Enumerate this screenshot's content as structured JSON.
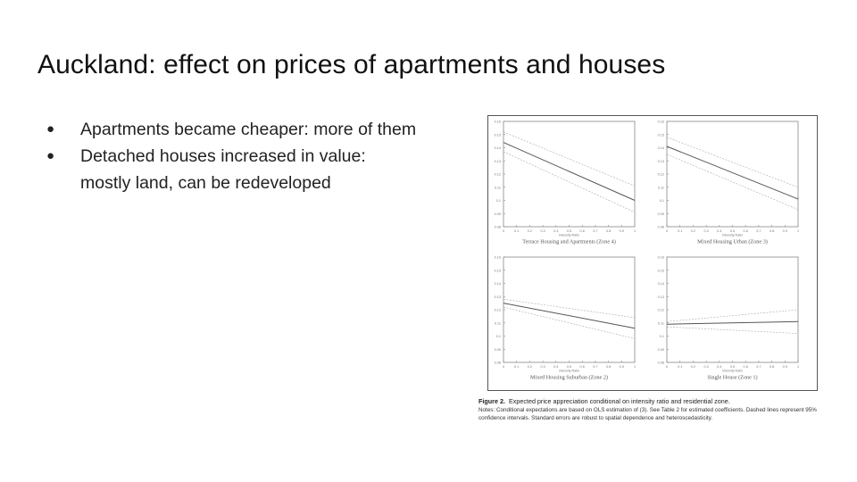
{
  "slide": {
    "title": "Auckland: effect on prices of apartments and houses",
    "bullets": [
      "Apartments became cheaper: more of them",
      "Detached houses increased in value:",
      "mostly land, can be redeveloped"
    ],
    "bullet_glyph": "●"
  },
  "figure": {
    "caption_label": "Figure 2.",
    "caption_title": "Expected price appreciation conditional on intensity ratio and residential zone.",
    "caption_notes": "Notes: Conditional expectations are based on OLS estimation of (3). See Table 2 for estimated coefficients. Dashed lines represent 95% confidence intervals. Standard errors are robust to spatial dependence and heteroscedasticity."
  },
  "chart_data": [
    {
      "type": "line",
      "subtitle": "Terrace Housing and Apartments (Zone 4)",
      "xlabel": "Intensity Ratio",
      "xlim": [
        0,
        1
      ],
      "ylim": [
        0.08,
        0.16
      ],
      "xticks": [
        "0",
        "0.1",
        "0.2",
        "0.3",
        "0.4",
        "0.5",
        "0.6",
        "0.7",
        "0.8",
        "0.9",
        "1"
      ],
      "yticks": [
        "0.08",
        "0.09",
        "0.1",
        "0.11",
        "0.12",
        "0.13",
        "0.14",
        "0.15",
        "0.16"
      ],
      "x": [
        0,
        1
      ],
      "series": [
        {
          "role": "estimate",
          "values": [
            0.144,
            0.1
          ]
        },
        {
          "role": "upper-ci",
          "values": [
            0.152,
            0.111
          ]
        },
        {
          "role": "lower-ci",
          "values": [
            0.137,
            0.091
          ]
        }
      ]
    },
    {
      "type": "line",
      "subtitle": "Mixed Housing Urban (Zone 3)",
      "xlabel": "Intensity Ratio",
      "xlim": [
        0,
        1
      ],
      "ylim": [
        0.08,
        0.16
      ],
      "xticks": [
        "0",
        "0.1",
        "0.2",
        "0.3",
        "0.4",
        "0.5",
        "0.6",
        "0.7",
        "0.8",
        "0.9",
        "1"
      ],
      "yticks": [
        "0.08",
        "0.09",
        "0.1",
        "0.11",
        "0.12",
        "0.13",
        "0.14",
        "0.15",
        "0.16"
      ],
      "x": [
        0,
        1
      ],
      "series": [
        {
          "role": "estimate",
          "values": [
            0.141,
            0.101
          ]
        },
        {
          "role": "upper-ci",
          "values": [
            0.148,
            0.11
          ]
        },
        {
          "role": "lower-ci",
          "values": [
            0.135,
            0.093
          ]
        }
      ]
    },
    {
      "type": "line",
      "subtitle": "Mixed Housing Suburban (Zone 2)",
      "xlabel": "Intensity Ratio",
      "xlim": [
        0,
        1
      ],
      "ylim": [
        0.08,
        0.16
      ],
      "xticks": [
        "0",
        "0.1",
        "0.2",
        "0.3",
        "0.4",
        "0.5",
        "0.6",
        "0.7",
        "0.8",
        "0.9",
        "1"
      ],
      "yticks": [
        "0.08",
        "0.09",
        "0.1",
        "0.11",
        "0.12",
        "0.13",
        "0.14",
        "0.15",
        "0.16"
      ],
      "x": [
        0,
        1
      ],
      "series": [
        {
          "role": "estimate",
          "values": [
            0.125,
            0.106
          ]
        },
        {
          "role": "upper-ci",
          "values": [
            0.128,
            0.114
          ]
        },
        {
          "role": "lower-ci",
          "values": [
            0.122,
            0.098
          ]
        }
      ]
    },
    {
      "type": "line",
      "subtitle": "Single House (Zone 1)",
      "xlabel": "Intensity Ratio",
      "xlim": [
        0,
        1
      ],
      "ylim": [
        0.08,
        0.16
      ],
      "xticks": [
        "0",
        "0.1",
        "0.2",
        "0.3",
        "0.4",
        "0.5",
        "0.6",
        "0.7",
        "0.8",
        "0.9",
        "1"
      ],
      "yticks": [
        "0.08",
        "0.09",
        "0.1",
        "0.11",
        "0.12",
        "0.13",
        "0.14",
        "0.15",
        "0.16"
      ],
      "x": [
        0,
        1
      ],
      "series": [
        {
          "role": "estimate",
          "values": [
            0.109,
            0.111
          ]
        },
        {
          "role": "upper-ci",
          "values": [
            0.111,
            0.12
          ]
        },
        {
          "role": "lower-ci",
          "values": [
            0.107,
            0.102
          ]
        }
      ]
    }
  ]
}
